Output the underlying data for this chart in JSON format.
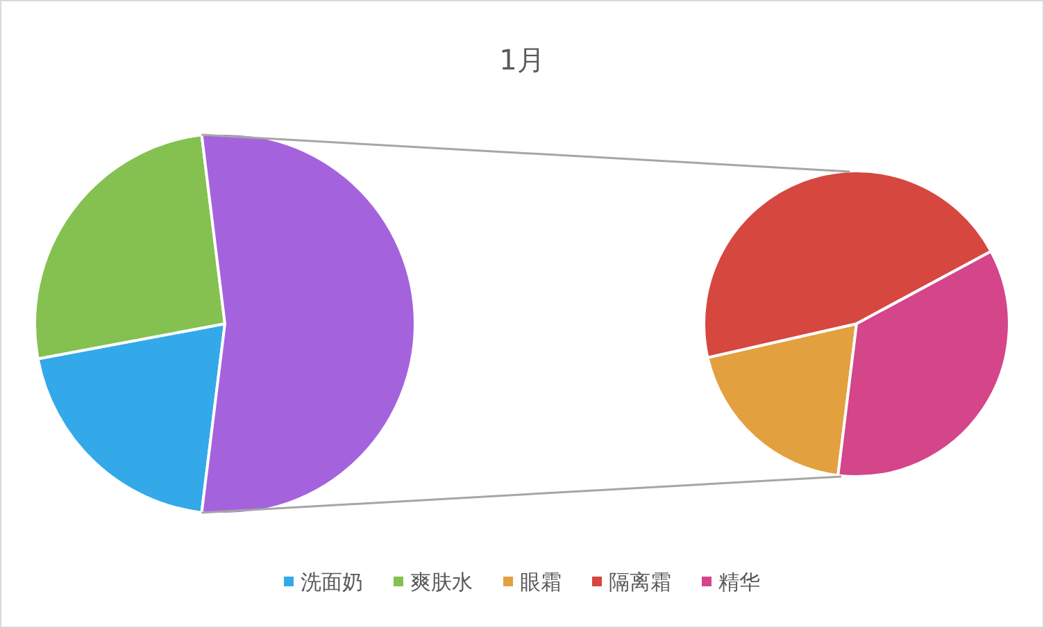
{
  "chart_data": [
    {
      "type": "pie",
      "title": "1月",
      "categories": [
        "洗面奶",
        "爽肤水",
        null
      ],
      "values": [
        20.1,
        26.0,
        53.9
      ],
      "colors": [
        "#33a9e9",
        "#84c151",
        "#a463dd"
      ],
      "legend": "bottom"
    },
    {
      "type": "pie",
      "categories": [
        "眼霜",
        "隔离霜",
        "精华"
      ],
      "values": [
        19.5,
        45.7,
        34.8
      ],
      "colors": [
        "#e3a03f",
        "#d5473f",
        "#d4458a"
      ],
      "legend": "bottom"
    }
  ]
}
